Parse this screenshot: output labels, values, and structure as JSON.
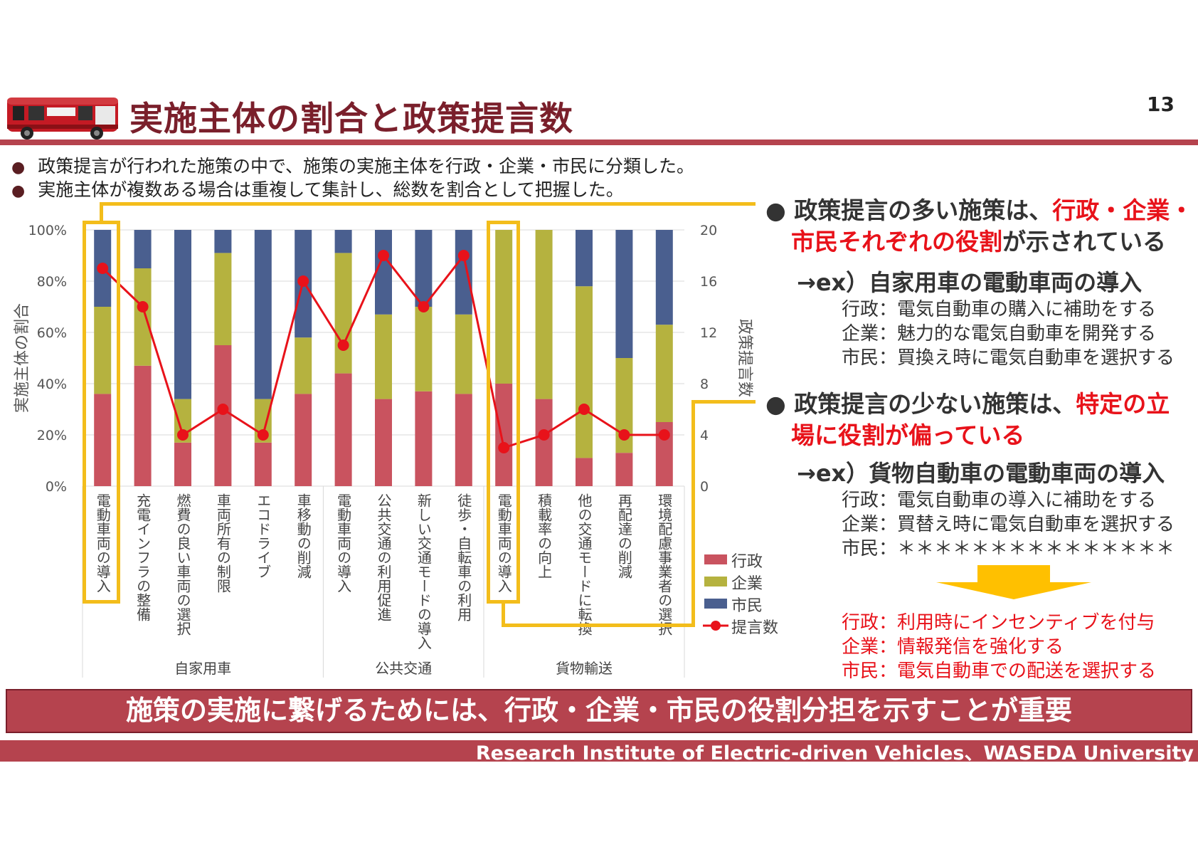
{
  "header": {
    "title": "実施主体の割合と政策提言数",
    "page_number": "13",
    "bus_icon": "bus-icon"
  },
  "intro": [
    "政策提言が行われた施策の中で、施策の実施主体を行政・企業・市民に分類した。",
    "実施主体が複数ある場合は重複して集計し、総数を割合として把握した。"
  ],
  "right_panel": {
    "point1": {
      "line1_plain": "政策提言の多い施策は、",
      "line1_red": "行政・企業・",
      "line2_red": "市民それぞれの役割",
      "line2_plain": "が示されている",
      "example": "→ex）自家用車の電動車両の導入",
      "details": [
        "行政：電気自動車の購入に補助をする",
        "企業：魅力的な電気自動車を開発する",
        "市民：買換え時に電気自動車を選択する"
      ]
    },
    "point2": {
      "line1_plain": "政策提言の少ない施策は、",
      "line1_red": "特定の立",
      "line2_red": "場に役割が偏っている",
      "example": "→ex）貨物自動車の電動車両の導入",
      "details": [
        "行政：電気自動車の導入に補助をする",
        "企業：買替え時に電気自動車を選択する",
        "市民：＊＊＊＊＊＊＊＊＊＊＊＊＊＊＊"
      ],
      "proposals": [
        "行政：利用時にインセンティブを付与",
        "企業：情報発信を強化する",
        "市民：電気自動車での配送を選択する"
      ]
    }
  },
  "conclusion": "施策の実施に繋げるためには、行政・企業・市民の役割分担を示すことが重要",
  "footer": "Research Institute of Electric-driven Vehicles、WASEDA University",
  "colors": {
    "gyosei": "#c9535f",
    "kigyo": "#b5b23f",
    "shimin": "#4a5f8f",
    "line": "#e8121a",
    "highlight": "#f3bd1b",
    "banner": "#b5434e"
  },
  "chart_data": {
    "type": "bar",
    "stacked": true,
    "categories": [
      "電動車両の導入",
      "充電インフラの整備",
      "燃費の良い車両の選択",
      "車両所有の制限",
      "エコドライブ",
      "車移動の削減",
      "電動車両の導入",
      "公共交通の利用促進",
      "新しい交通モードの導入",
      "徒歩・自転車の利用",
      "電動車両の導入",
      "積載率の向上",
      "他の交通モードに転換",
      "再配達の削減",
      "環境配慮事業者の選択"
    ],
    "groups": [
      {
        "name": "自家用車",
        "count": 6
      },
      {
        "name": "公共交通",
        "count": 4
      },
      {
        "name": "貨物輸送",
        "count": 5
      }
    ],
    "series": [
      {
        "name": "行政",
        "values": [
          36,
          47,
          17,
          55,
          17,
          36,
          44,
          34,
          37,
          36,
          40,
          34,
          11,
          13,
          25
        ]
      },
      {
        "name": "企業",
        "values": [
          34,
          38,
          17,
          36,
          17,
          22,
          47,
          33,
          33,
          31,
          60,
          66,
          67,
          37,
          38
        ]
      },
      {
        "name": "市民",
        "values": [
          30,
          15,
          66,
          9,
          66,
          42,
          9,
          33,
          30,
          33,
          0,
          0,
          22,
          50,
          37
        ]
      }
    ],
    "line_series": {
      "name": "提言数",
      "values": [
        17,
        14,
        4,
        6,
        4,
        16,
        11,
        18,
        14,
        18,
        3,
        4,
        6,
        4,
        4
      ]
    },
    "ylabel": "実施主体の割合",
    "y2label": "政策提言数",
    "ylim": [
      0,
      100
    ],
    "y2lim": [
      0,
      20
    ],
    "yticks": [
      "0%",
      "20%",
      "40%",
      "60%",
      "80%",
      "100%"
    ],
    "y2ticks": [
      "0",
      "4",
      "8",
      "12",
      "16",
      "20"
    ],
    "legend_position": "right",
    "grid": true,
    "highlighted_categories": [
      0,
      10
    ]
  }
}
